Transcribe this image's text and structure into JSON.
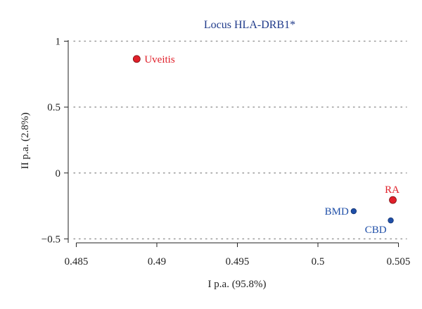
{
  "chart_data": {
    "type": "scatter",
    "title": "Locus HLA-DRB1*",
    "xlabel": "I p.a. (95.8%)",
    "ylabel": "II p.a. (2.8%)",
    "xlim": [
      0.4845,
      0.5055
    ],
    "ylim": [
      -0.53,
      1.04
    ],
    "x_ticks": [
      0.485,
      0.49,
      0.495,
      0.5,
      0.505
    ],
    "x_tick_labels": [
      "0.485",
      "0.49",
      "0.495",
      "0.5",
      "0.505"
    ],
    "y_ticks": [
      1,
      0.5,
      0,
      -0.5
    ],
    "y_tick_labels": [
      "1",
      "0.5",
      "0",
      "−0.5"
    ],
    "grid": "horizontal dotted",
    "colors": {
      "title": "#1f3a8a",
      "axis": "#222222",
      "grid": "#999999",
      "red": "#e0202a",
      "blue": "#1f4fa8"
    },
    "points": [
      {
        "label": "Uveitis",
        "x": 0.48875,
        "y": 0.865,
        "color": "#e0202a",
        "marker": "large",
        "label_side": "right"
      },
      {
        "label": "RA",
        "x": 0.50465,
        "y": -0.205,
        "color": "#e0202a",
        "marker": "large",
        "label_side": "top"
      },
      {
        "label": "BMD",
        "x": 0.50222,
        "y": -0.29,
        "color": "#1f4fa8",
        "marker": "small",
        "label_side": "left"
      },
      {
        "label": "CBD",
        "x": 0.50452,
        "y": -0.36,
        "color": "#1f4fa8",
        "marker": "small",
        "label_side": "bottom-left"
      }
    ]
  }
}
